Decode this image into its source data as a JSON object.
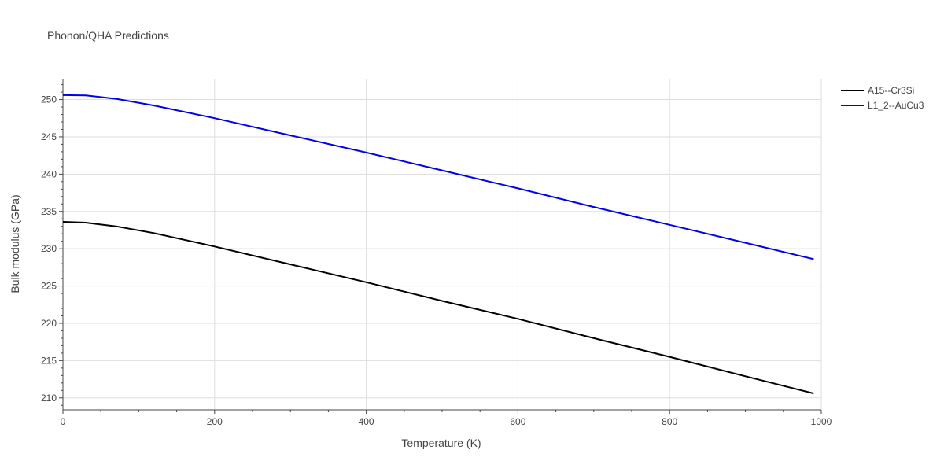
{
  "chart_data": {
    "type": "line",
    "title": "Phonon/QHA Predictions",
    "xlabel": "Temperature (K)",
    "ylabel": "Bulk modulus (GPa)",
    "xlim": [
      0,
      1000
    ],
    "ylim": [
      208.5,
      252.8
    ],
    "xticks": [
      0,
      200,
      400,
      600,
      800,
      1000
    ],
    "yticks": [
      210,
      215,
      220,
      225,
      230,
      235,
      240,
      245,
      250
    ],
    "grid": true,
    "legend_position": "top-right",
    "series": [
      {
        "name": "A15--Cr3Si",
        "color": "#000000",
        "x": [
          0,
          30,
          70,
          120,
          200,
          300,
          400,
          500,
          600,
          700,
          800,
          900,
          990
        ],
        "y": [
          233.6,
          233.5,
          233.0,
          232.1,
          230.3,
          227.9,
          225.5,
          223.0,
          220.6,
          218.0,
          215.5,
          212.9,
          210.6
        ]
      },
      {
        "name": "L1_2--AuCu3",
        "color": "#0000ee",
        "x": [
          0,
          30,
          70,
          120,
          200,
          300,
          400,
          500,
          600,
          700,
          800,
          900,
          990
        ],
        "y": [
          250.6,
          250.55,
          250.1,
          249.2,
          247.5,
          245.2,
          242.9,
          240.5,
          238.1,
          235.6,
          233.2,
          230.8,
          228.6
        ]
      }
    ]
  }
}
